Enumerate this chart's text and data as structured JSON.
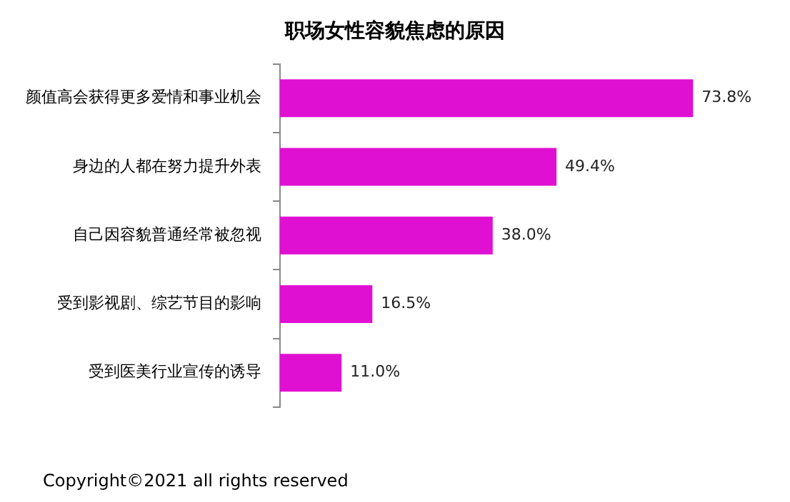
{
  "chart_data": {
    "type": "bar",
    "orientation": "horizontal",
    "title": "职场女性容貌焦虑的原因",
    "categories": [
      "颜值高会获得更多爱情和事业机会",
      "身边的人都在努力提升外表",
      "自己因容貌普通经常被忽视",
      "受到影视剧、综艺节目的影响",
      "受到医美行业宣传的诱导"
    ],
    "values": [
      73.8,
      49.4,
      38.0,
      16.5,
      11.0
    ],
    "value_labels": [
      "73.8%",
      "49.4%",
      "38.0%",
      "16.5%",
      "11.0%"
    ],
    "color": "#e010d2",
    "grid": false,
    "legend": false,
    "annotations": [
      "Copyright©2021 all rights reserved"
    ]
  }
}
